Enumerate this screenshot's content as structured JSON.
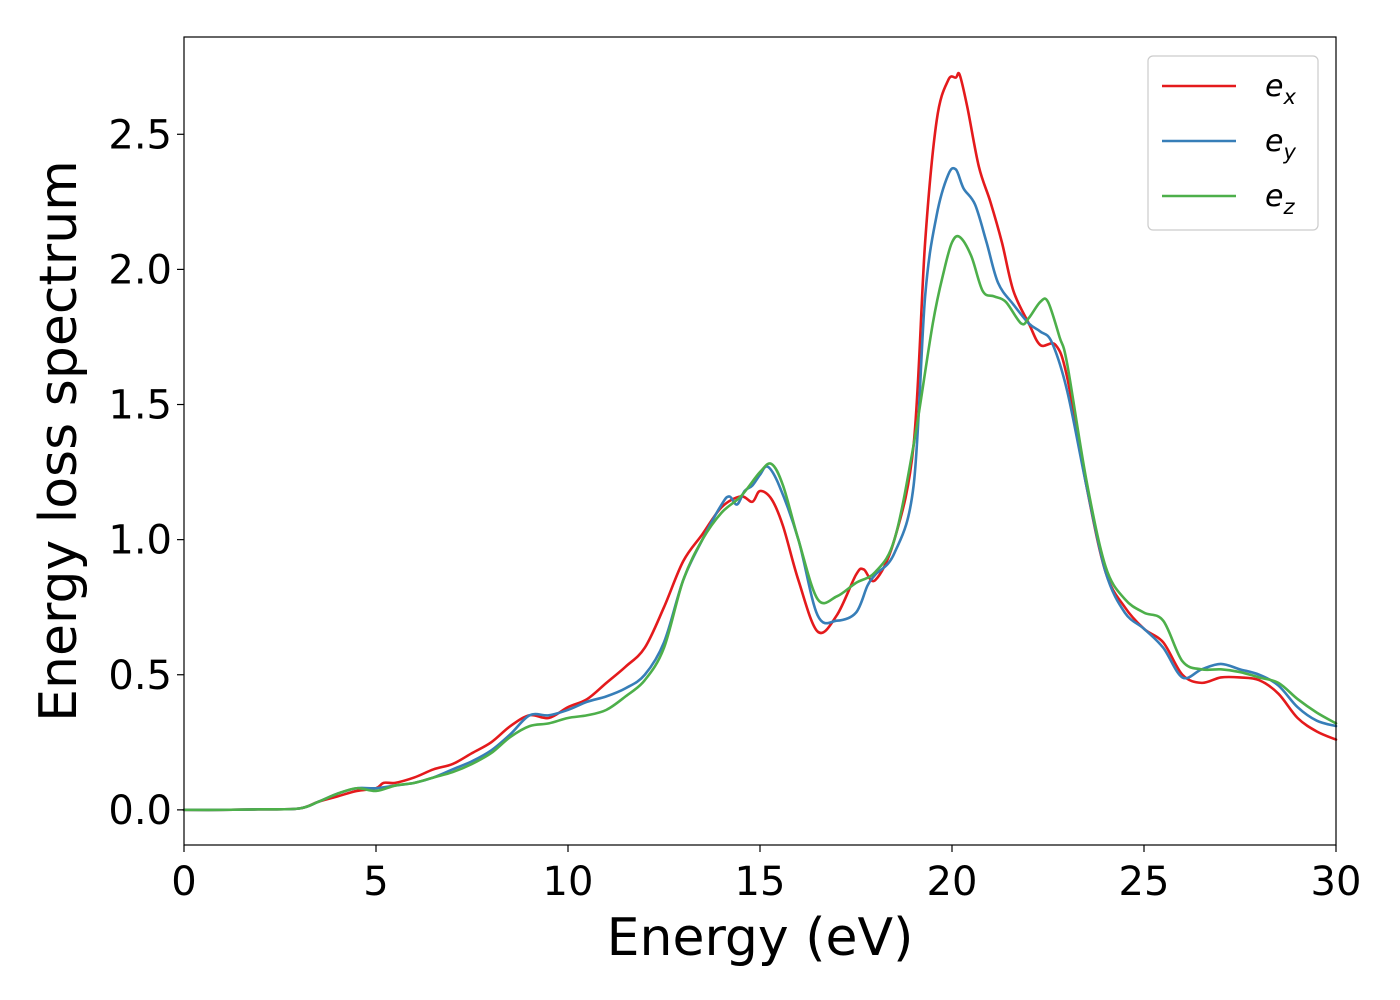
{
  "chart_data": {
    "type": "line",
    "title": "",
    "xlabel": "Energy (eV)",
    "ylabel": "Energy loss spectrum",
    "xlim": [
      0,
      30
    ],
    "ylim": [
      -0.13,
      2.86
    ],
    "xticks": [
      0,
      5,
      10,
      15,
      20,
      25,
      30
    ],
    "xtick_labels": [
      "0",
      "5",
      "10",
      "15",
      "20",
      "25",
      "30"
    ],
    "yticks": [
      0.0,
      0.5,
      1.0,
      1.5,
      2.0,
      2.5
    ],
    "ytick_labels": [
      "0.0",
      "0.5",
      "1.0",
      "1.5",
      "2.0",
      "2.5"
    ],
    "grid": false,
    "legend": "top-right",
    "series": [
      {
        "name": "e_x",
        "legend_base": "e",
        "legend_sub": "x",
        "color": "#e41a1c",
        "x": [
          0,
          1,
          2,
          3,
          3.5,
          4,
          4.5,
          5,
          5.2,
          5.5,
          6,
          6.5,
          7,
          7.5,
          8,
          8.5,
          9,
          9.5,
          10,
          10.5,
          11,
          11.5,
          12,
          12.5,
          13,
          13.5,
          14,
          14.5,
          14.8,
          15,
          15.3,
          15.6,
          16,
          16.5,
          17,
          17.5,
          17.7,
          18,
          18.5,
          19,
          19.3,
          19.6,
          19.9,
          20.1,
          20.2,
          20.4,
          20.7,
          21,
          21.3,
          21.6,
          22,
          22.3,
          22.7,
          23,
          23.5,
          24,
          24.5,
          25,
          25.5,
          26,
          26.5,
          27,
          27.5,
          28,
          28.5,
          29,
          29.5,
          30
        ],
        "y": [
          0,
          0,
          0.002,
          0.005,
          0.03,
          0.05,
          0.07,
          0.08,
          0.1,
          0.1,
          0.12,
          0.15,
          0.17,
          0.21,
          0.25,
          0.31,
          0.35,
          0.34,
          0.38,
          0.41,
          0.47,
          0.53,
          0.6,
          0.75,
          0.92,
          1.02,
          1.12,
          1.16,
          1.14,
          1.18,
          1.15,
          1.05,
          0.85,
          0.66,
          0.72,
          0.87,
          0.89,
          0.85,
          1.0,
          1.35,
          2.1,
          2.55,
          2.7,
          2.71,
          2.72,
          2.6,
          2.38,
          2.25,
          2.1,
          1.92,
          1.8,
          1.72,
          1.72,
          1.6,
          1.2,
          0.88,
          0.75,
          0.67,
          0.62,
          0.5,
          0.47,
          0.49,
          0.49,
          0.48,
          0.43,
          0.34,
          0.29,
          0.26
        ]
      },
      {
        "name": "e_y",
        "legend_base": "e",
        "legend_sub": "y",
        "color": "#377eb8",
        "x": [
          0,
          1,
          2,
          3,
          3.5,
          4,
          4.5,
          5,
          5.5,
          6,
          6.5,
          7,
          7.5,
          8,
          8.5,
          9,
          9.5,
          10,
          10.5,
          11,
          11.5,
          12,
          12.5,
          13,
          13.5,
          14,
          14.2,
          14.4,
          14.6,
          14.8,
          15,
          15.2,
          15.5,
          16,
          16.5,
          17,
          17.5,
          17.8,
          18,
          18.5,
          19,
          19.3,
          19.6,
          19.9,
          20.1,
          20.3,
          20.6,
          20.9,
          21.2,
          21.6,
          22,
          22.3,
          22.6,
          23,
          23.5,
          24,
          24.5,
          25,
          25.5,
          26,
          26.5,
          27,
          27.5,
          28,
          28.5,
          29,
          29.5,
          30
        ],
        "y": [
          0,
          0,
          0.002,
          0.005,
          0.03,
          0.06,
          0.08,
          0.08,
          0.09,
          0.1,
          0.12,
          0.15,
          0.18,
          0.22,
          0.28,
          0.35,
          0.35,
          0.37,
          0.4,
          0.42,
          0.45,
          0.5,
          0.62,
          0.85,
          1.0,
          1.13,
          1.16,
          1.13,
          1.18,
          1.2,
          1.24,
          1.27,
          1.2,
          1.0,
          0.72,
          0.7,
          0.73,
          0.83,
          0.87,
          0.95,
          1.2,
          1.9,
          2.2,
          2.35,
          2.37,
          2.3,
          2.24,
          2.1,
          1.95,
          1.87,
          1.8,
          1.77,
          1.73,
          1.55,
          1.2,
          0.88,
          0.73,
          0.67,
          0.6,
          0.49,
          0.52,
          0.54,
          0.52,
          0.5,
          0.46,
          0.38,
          0.33,
          0.31
        ]
      },
      {
        "name": "e_z",
        "legend_base": "e",
        "legend_sub": "z",
        "color": "#4daf4a",
        "x": [
          0,
          1,
          2,
          3,
          3.5,
          4,
          4.5,
          5,
          5.5,
          6,
          6.5,
          7,
          7.5,
          8,
          8.5,
          9,
          9.5,
          10,
          10.5,
          11,
          11.5,
          12,
          12.5,
          13,
          13.5,
          14,
          14.5,
          15,
          15.3,
          15.6,
          16,
          16.5,
          17,
          17.5,
          18,
          18.5,
          19,
          19.5,
          19.8,
          20,
          20.2,
          20.5,
          20.8,
          21.1,
          21.4,
          21.8,
          22,
          22.3,
          22.5,
          22.8,
          23,
          23.5,
          24,
          24.5,
          25,
          25.5,
          26,
          26.5,
          27,
          27.5,
          28,
          28.5,
          29,
          29.5,
          30
        ],
        "y": [
          0,
          0,
          0.002,
          0.005,
          0.03,
          0.06,
          0.08,
          0.07,
          0.09,
          0.1,
          0.12,
          0.14,
          0.17,
          0.21,
          0.27,
          0.31,
          0.32,
          0.34,
          0.35,
          0.37,
          0.42,
          0.48,
          0.6,
          0.85,
          1.0,
          1.1,
          1.16,
          1.25,
          1.28,
          1.2,
          1.0,
          0.78,
          0.79,
          0.84,
          0.88,
          1.0,
          1.35,
          1.8,
          2.0,
          2.1,
          2.12,
          2.05,
          1.92,
          1.9,
          1.88,
          1.8,
          1.82,
          1.88,
          1.88,
          1.75,
          1.65,
          1.22,
          0.9,
          0.78,
          0.73,
          0.7,
          0.55,
          0.52,
          0.52,
          0.51,
          0.49,
          0.47,
          0.41,
          0.36,
          0.32
        ]
      }
    ]
  }
}
